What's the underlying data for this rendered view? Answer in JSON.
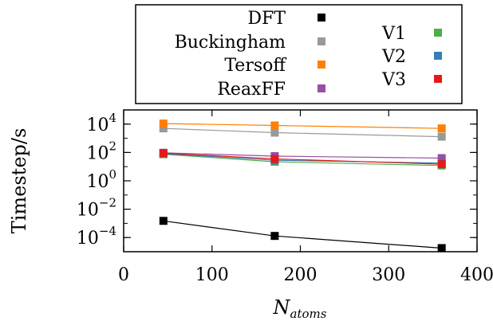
{
  "chart_data": {
    "type": "line",
    "xlabel": "N",
    "xlabel_sub": "atoms",
    "ylabel": "Timestep/s",
    "xlim": [
      0,
      400
    ],
    "ylim": [
      1e-05,
      100000
    ],
    "yscale": "log",
    "grid": false,
    "legend_position": "top",
    "x": [
      45,
      171,
      360
    ],
    "x_ticks": [
      "0",
      "100",
      "200",
      "300",
      "400"
    ],
    "y_ticks": [
      {
        "base": "10",
        "exp": "4",
        "value": 10000
      },
      {
        "base": "10",
        "exp": "2",
        "value": 100
      },
      {
        "base": "10",
        "exp": "0",
        "value": 1
      },
      {
        "base": "10",
        "exp": "−2",
        "value": 0.01
      },
      {
        "base": "10",
        "exp": "−4",
        "value": 0.0001
      }
    ],
    "series": [
      {
        "name": "DFT",
        "color": "#000000",
        "values": [
          0.0015,
          0.00013,
          1.8e-05
        ]
      },
      {
        "name": "Buckingham",
        "color": "#999999",
        "values": [
          5000,
          2500,
          1300
        ]
      },
      {
        "name": "Tersoff",
        "color": "#ff7f00",
        "values": [
          11000,
          8000,
          5000
        ]
      },
      {
        "name": "ReaxFF",
        "color": "#984ea3",
        "values": [
          95,
          55,
          40
        ]
      },
      {
        "name": "V1",
        "color": "#4daf4a",
        "values": [
          75,
          22,
          12
        ]
      },
      {
        "name": "V2",
        "color": "#377eb8",
        "values": [
          82,
          28,
          18
        ]
      },
      {
        "name": "V3",
        "color": "#e41a1c",
        "values": [
          90,
          35,
          15
        ]
      }
    ]
  }
}
